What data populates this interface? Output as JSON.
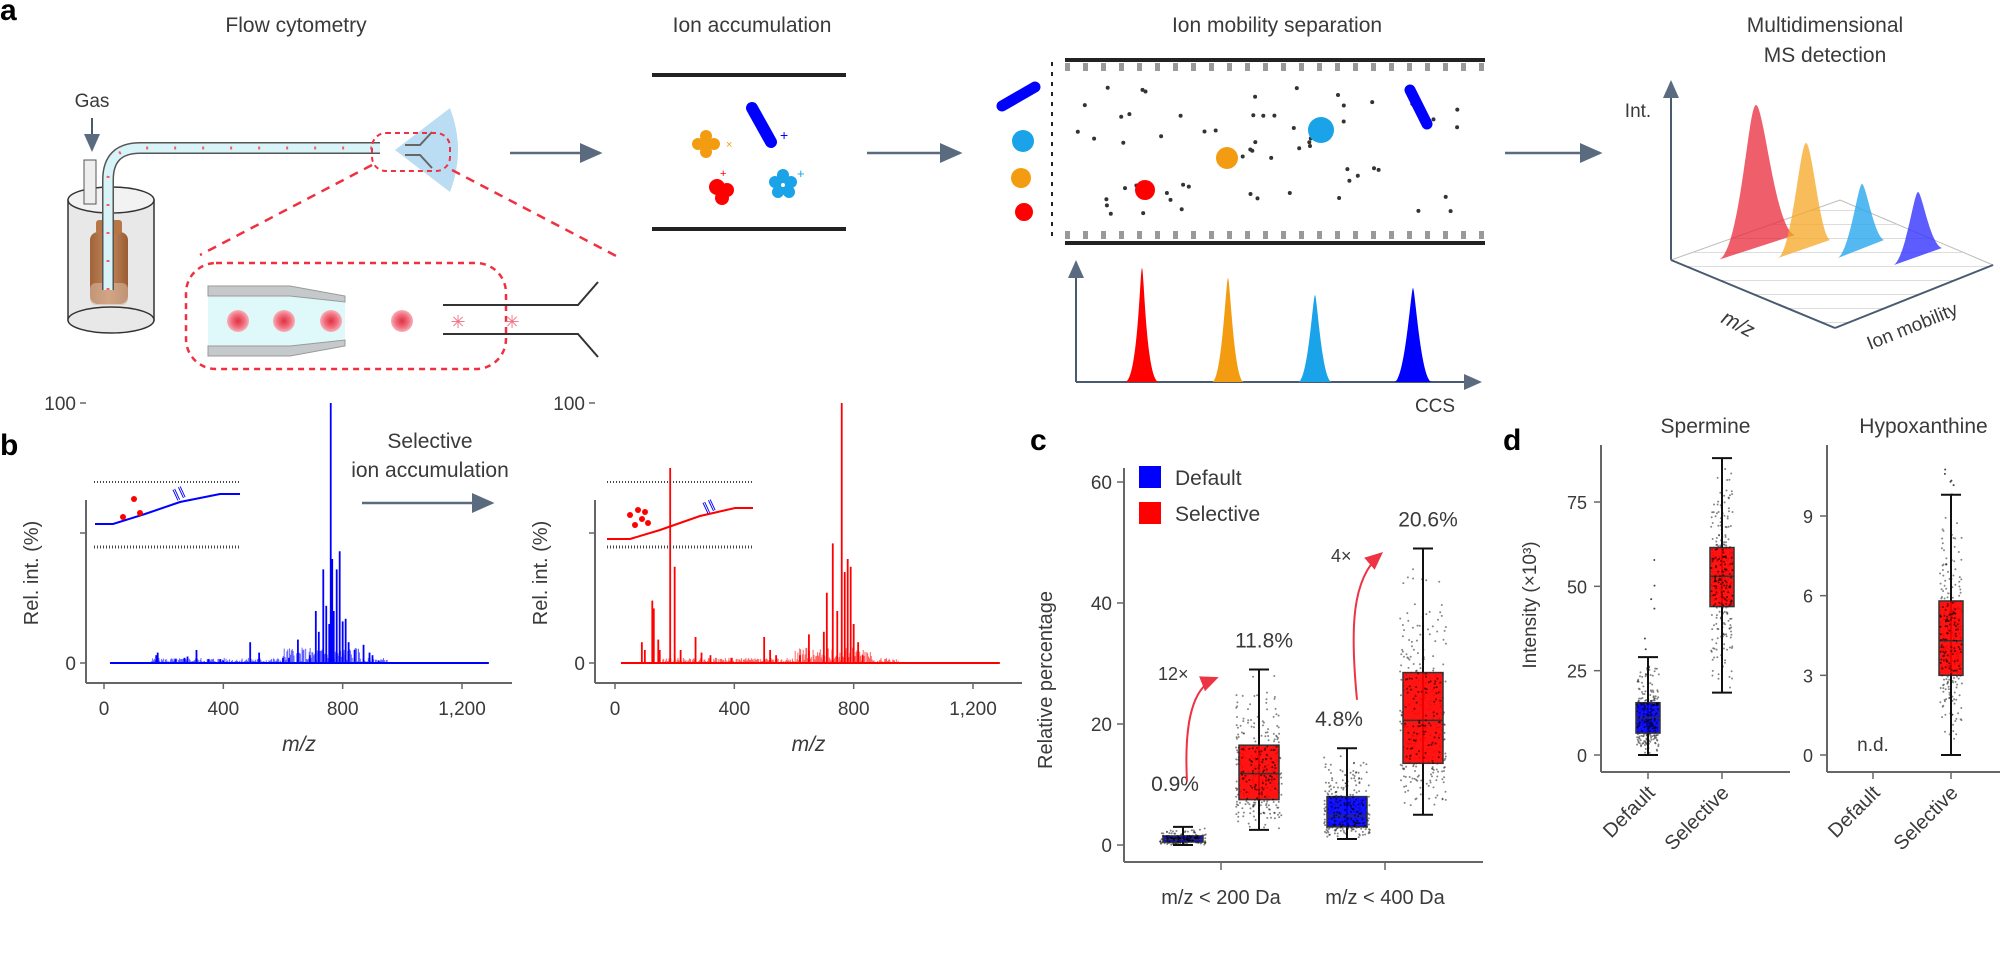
{
  "figure": {
    "panels": {
      "a": {
        "letter": "a",
        "stages": [
          {
            "title": "Flow cytometry"
          },
          {
            "title": "Ion accumulation"
          },
          {
            "title": "Ion mobility separation"
          },
          {
            "title_line1": "Multidimensional",
            "title_line2": "MS detection"
          }
        ],
        "gas_label": "Gas",
        "ccs_label": "CCS",
        "int_label": "Int.",
        "mz_label": "m/z",
        "ion_mobility_label": "Ion mobility",
        "ion_colors": {
          "red": "#ff0000",
          "orange": "#f39c12",
          "cyan": "#1aa3e8",
          "blue": "#0000ff"
        }
      },
      "b": {
        "letter": "b",
        "arrow_label_line1": "Selective",
        "arrow_label_line2": "ion accumulation"
      },
      "c": {
        "letter": "c"
      },
      "d": {
        "letter": "d"
      }
    }
  },
  "chart_data": [
    {
      "id": "b-default",
      "type": "line",
      "title": "",
      "xlabel": "m/z",
      "ylabel": "Rel. int. (%)",
      "xlim": [
        0,
        1300
      ],
      "ylim": [
        0,
        100
      ],
      "xticks": [
        "0",
        "400",
        "800",
        "1,200"
      ],
      "xtick_values": [
        0,
        400,
        800,
        1200
      ],
      "yticks": [
        "0",
        "",
        "100"
      ],
      "ytick_values": [
        0,
        50,
        100
      ],
      "color": "#0000ff",
      "peaks": [
        [
          175,
          3
        ],
        [
          180,
          4
        ],
        [
          240,
          1.5
        ],
        [
          270,
          2
        ],
        [
          280,
          2.5
        ],
        [
          310,
          5
        ],
        [
          350,
          1.5
        ],
        [
          390,
          1.5
        ],
        [
          400,
          1
        ],
        [
          490,
          8
        ],
        [
          520,
          4
        ],
        [
          600,
          2
        ],
        [
          620,
          2
        ],
        [
          650,
          9
        ],
        [
          690,
          3
        ],
        [
          710,
          20
        ],
        [
          720,
          12
        ],
        [
          735,
          36
        ],
        [
          745,
          22
        ],
        [
          755,
          15
        ],
        [
          760,
          100
        ],
        [
          765,
          40
        ],
        [
          770,
          20
        ],
        [
          780,
          36
        ],
        [
          790,
          43
        ],
        [
          800,
          16
        ],
        [
          810,
          17
        ],
        [
          820,
          8
        ],
        [
          840,
          5
        ],
        [
          870,
          7
        ],
        [
          890,
          4
        ],
        [
          900,
          3
        ],
        [
          920,
          1
        ]
      ]
    },
    {
      "id": "b-selective",
      "type": "line",
      "title": "",
      "xlabel": "m/z",
      "ylabel": "Rel. int. (%)",
      "xlim": [
        0,
        1300
      ],
      "ylim": [
        0,
        100
      ],
      "xticks": [
        "0",
        "400",
        "800",
        "1,200"
      ],
      "xtick_values": [
        0,
        400,
        800,
        1200
      ],
      "yticks": [
        "0",
        "",
        "100"
      ],
      "ytick_values": [
        0,
        50,
        100
      ],
      "color": "#ff0000",
      "peaks": [
        [
          90,
          8
        ],
        [
          100,
          5
        ],
        [
          125,
          24
        ],
        [
          130,
          21
        ],
        [
          145,
          9
        ],
        [
          150,
          5
        ],
        [
          185,
          75
        ],
        [
          200,
          37
        ],
        [
          220,
          5
        ],
        [
          270,
          10
        ],
        [
          290,
          4
        ],
        [
          320,
          3
        ],
        [
          390,
          2
        ],
        [
          500,
          10
        ],
        [
          520,
          5
        ],
        [
          540,
          3
        ],
        [
          620,
          3
        ],
        [
          650,
          11
        ],
        [
          700,
          12
        ],
        [
          710,
          27
        ],
        [
          730,
          46
        ],
        [
          745,
          20
        ],
        [
          760,
          100
        ],
        [
          770,
          35
        ],
        [
          780,
          40
        ],
        [
          790,
          37
        ],
        [
          800,
          15
        ],
        [
          815,
          8
        ],
        [
          830,
          3
        ]
      ]
    },
    {
      "id": "c",
      "type": "box",
      "title": "",
      "xlabel": "",
      "ylabel": "Relative percentage",
      "ylim": [
        0,
        60
      ],
      "yticks": [
        "0",
        "20",
        "40",
        "60"
      ],
      "ytick_values": [
        0,
        20,
        40,
        60
      ],
      "categories": [
        "m/z < 200 Da",
        "m/z < 400 Da"
      ],
      "legend": {
        "position": "top-left",
        "entries": [
          {
            "name": "Default",
            "color": "#0000ff"
          },
          {
            "name": "Selective",
            "color": "#ff0000"
          }
        ]
      },
      "series": [
        {
          "name": "Default",
          "color": "#0000ff",
          "boxes": [
            {
              "min": 0,
              "q1": 0.5,
              "median": 0.9,
              "q3": 1.5,
              "max": 3,
              "label": "0.9%"
            },
            {
              "min": 1,
              "q1": 3,
              "median": 4.8,
              "q3": 8,
              "max": 16,
              "label": "4.8%"
            }
          ]
        },
        {
          "name": "Selective",
          "color": "#ff0000",
          "boxes": [
            {
              "min": 2.5,
              "q1": 7.5,
              "median": 11.8,
              "q3": 16.5,
              "max": 29,
              "label": "11.8%"
            },
            {
              "min": 5,
              "q1": 13.5,
              "median": 20.6,
              "q3": 28.5,
              "max": 49,
              "label": "20.6%"
            }
          ]
        }
      ],
      "annotations": [
        {
          "text": "12×",
          "color": "#ee3344",
          "category": "m/z < 200 Da"
        },
        {
          "text": "4×",
          "color": "#ee3344",
          "category": "m/z < 400 Da"
        }
      ]
    },
    {
      "id": "d-spermine",
      "type": "box",
      "title": "Spermine",
      "xlabel": "",
      "ylabel": "Intensity (×10³)",
      "ylim": [
        0,
        90
      ],
      "yticks": [
        "0",
        "25",
        "50",
        "75"
      ],
      "ytick_values": [
        0,
        25,
        50,
        75
      ],
      "categories": [
        "Default",
        "Selective"
      ],
      "boxes": [
        {
          "category": "Default",
          "color": "#0000ff",
          "min": 0,
          "q1": 6.5,
          "median": 11,
          "q3": 15.5,
          "max": 29,
          "outliers_max": 62
        },
        {
          "category": "Selective",
          "color": "#ff0000",
          "min": 18.5,
          "q1": 44,
          "median": 53,
          "q3": 61.5,
          "max": 88
        }
      ]
    },
    {
      "id": "d-hypoxanthine",
      "type": "box",
      "title": "Hypoxanthine",
      "xlabel": "",
      "ylabel": "",
      "ylim": [
        0,
        11
      ],
      "yticks": [
        "0",
        "3",
        "6",
        "9"
      ],
      "ytick_values": [
        0,
        3,
        6,
        9
      ],
      "categories": [
        "Default",
        "Selective"
      ],
      "not_detected_label": "n.d.",
      "boxes": [
        {
          "category": "Selective",
          "color": "#ff0000",
          "min": 0,
          "q1": 3,
          "median": 4.3,
          "q3": 5.8,
          "max": 9.8,
          "outliers_max": 11
        }
      ]
    }
  ]
}
